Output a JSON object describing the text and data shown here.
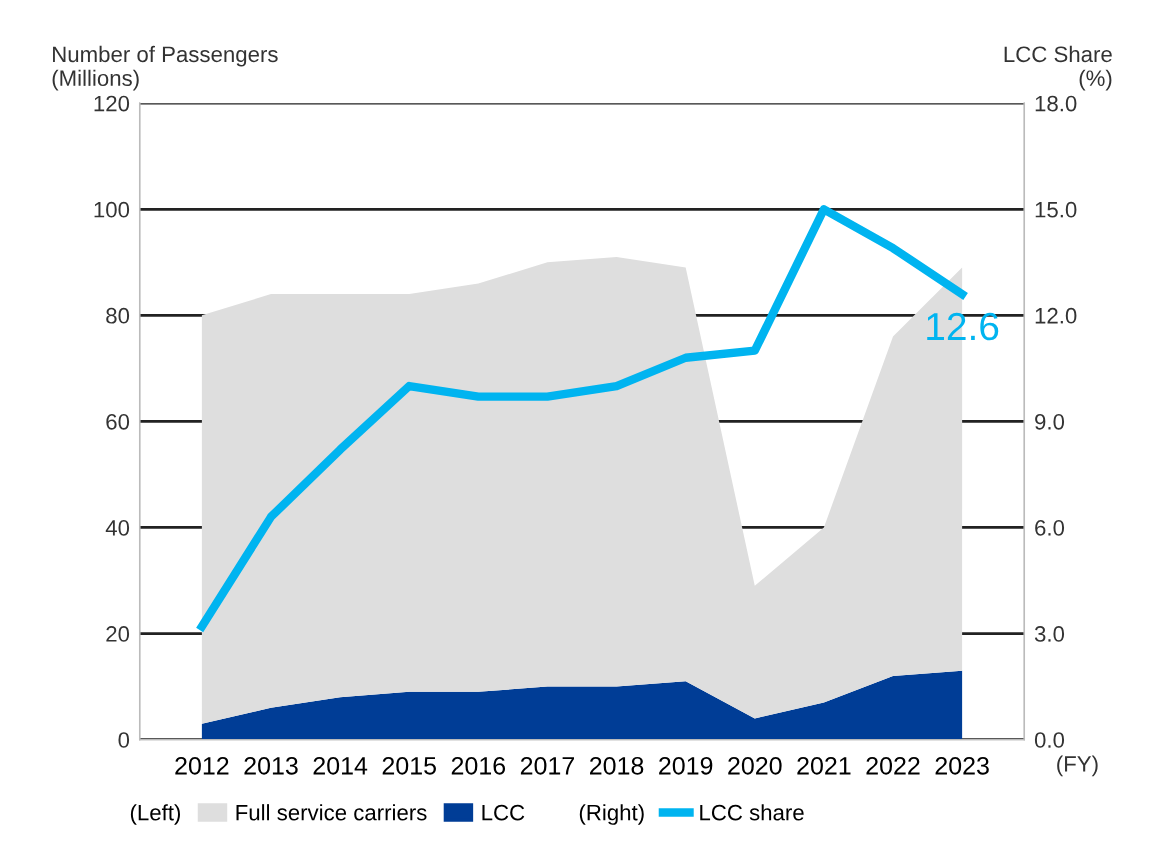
{
  "chart_data": {
    "type": "area",
    "stacked": true,
    "categories": [
      "2012",
      "2013",
      "2014",
      "2015",
      "2016",
      "2017",
      "2018",
      "2019",
      "2020",
      "2021",
      "2022",
      "2023"
    ],
    "series": [
      {
        "name": "LCC",
        "color": "#003d96",
        "values": [
          3,
          6,
          8,
          9,
          9,
          10,
          10,
          11,
          4,
          7,
          12,
          13
        ]
      },
      {
        "name": "Full service carriers",
        "color": "#dedede",
        "values": [
          77,
          78,
          76,
          75,
          77,
          80,
          81,
          78,
          25,
          33,
          64,
          76
        ]
      },
      {
        "name": "LCC share",
        "type": "line",
        "axis": "y2",
        "color": "#00b4f0",
        "values": [
          3.2,
          6.3,
          8.2,
          10.0,
          9.7,
          9.7,
          10.0,
          10.8,
          11.0,
          15.0,
          13.9,
          12.6
        ],
        "value_labels": [
          null,
          null,
          null,
          null,
          null,
          null,
          null,
          null,
          null,
          null,
          null,
          "12.6"
        ]
      }
    ],
    "ylabel": "Number of Passengers\n(Millions)",
    "y2label": "LCC Share\n(%)",
    "xlabel": "(FY)",
    "ylim": [
      0,
      120
    ],
    "yticks": [
      0,
      20,
      40,
      60,
      80,
      100,
      120
    ],
    "y2lim": [
      0,
      18
    ],
    "y2ticks": [
      {
        "value": 0,
        "label": "0.0"
      },
      {
        "value": 3,
        "label": "3.0"
      },
      {
        "value": 6,
        "label": "6.0"
      },
      {
        "value": 9,
        "label": "9.0"
      },
      {
        "value": 12,
        "label": "12.0"
      },
      {
        "value": 15,
        "label": "15.0"
      },
      {
        "value": 18,
        "label": "18.0"
      }
    ],
    "annotations": [
      "(Left)",
      "(Right)"
    ],
    "grid": "y",
    "legend": "bottom",
    "marker": "none",
    "line_style": "solid"
  }
}
